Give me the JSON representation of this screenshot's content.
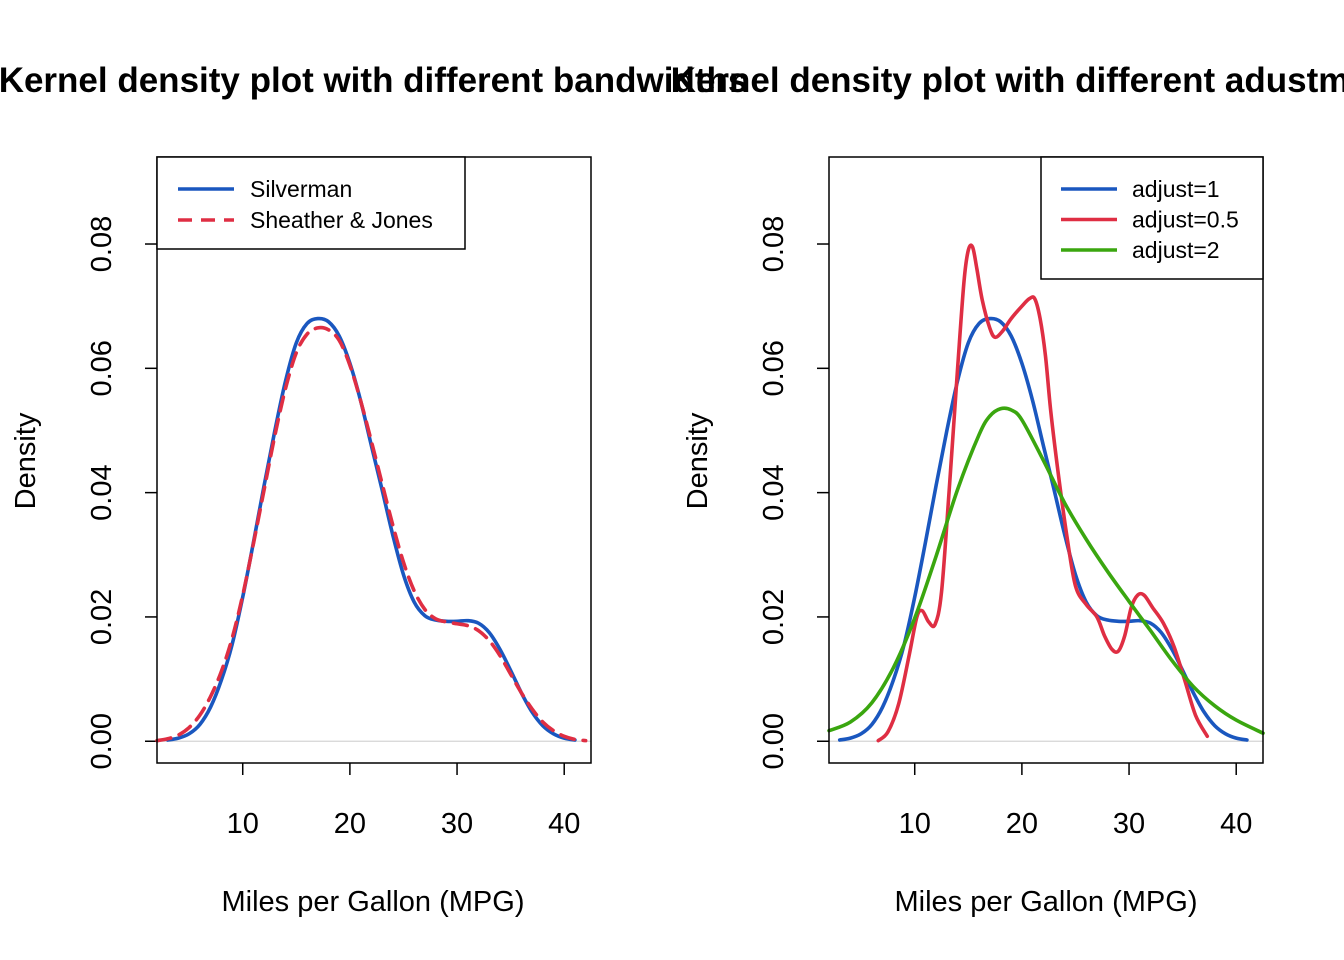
{
  "chart_data": [
    {
      "type": "line",
      "title": "Kernel density plot with different bandwidths",
      "xlabel": "Miles per Gallon (MPG)",
      "ylabel": "Density",
      "xlim": [
        2,
        42.5
      ],
      "ylim": [
        -0.0035,
        0.094
      ],
      "x_ticks": [
        10,
        20,
        30,
        40
      ],
      "x_tick_labels": [
        "10",
        "20",
        "30",
        "40"
      ],
      "y_ticks": [
        0,
        0.02,
        0.04,
        0.06,
        0.08
      ],
      "y_tick_labels": [
        "0.00",
        "0.02",
        "0.04",
        "0.06",
        "0.08"
      ],
      "grid": false,
      "baseline": 0,
      "legend": {
        "position": "top-left",
        "entries": [
          {
            "label": "Silverman",
            "color": "#1a57bf",
            "dash": "solid"
          },
          {
            "label": "Sheather & Jones",
            "color": "#df2e43",
            "dash": "dashed"
          }
        ]
      },
      "series": [
        {
          "name": "Silverman",
          "color": "#1a57bf",
          "dash": "solid",
          "x": [
            3,
            4,
            5,
            6,
            7,
            8,
            9,
            10,
            11,
            12,
            13,
            14,
            15,
            16,
            17,
            18,
            19,
            20,
            21,
            22,
            23,
            24,
            25,
            26,
            27,
            28,
            29,
            30,
            31,
            32,
            33,
            34,
            35,
            36,
            37,
            38,
            39,
            40,
            41
          ],
          "y": [
            0.0002,
            0.0005,
            0.0012,
            0.0027,
            0.0055,
            0.0098,
            0.0155,
            0.0232,
            0.032,
            0.0412,
            0.05,
            0.058,
            0.0641,
            0.0672,
            0.068,
            0.0675,
            0.0652,
            0.0608,
            0.0548,
            0.0476,
            0.0405,
            0.0332,
            0.0268,
            0.0224,
            0.0202,
            0.0195,
            0.0193,
            0.0193,
            0.0194,
            0.019,
            0.0175,
            0.0148,
            0.0114,
            0.0078,
            0.0047,
            0.0025,
            0.0012,
            0.0005,
            0.0002
          ]
        },
        {
          "name": "Sheather & Jones",
          "color": "#df2e43",
          "dash": "dashed",
          "x": [
            2,
            3,
            4,
            5,
            6,
            7,
            8,
            9,
            10,
            11,
            12,
            13,
            14,
            15,
            16,
            17,
            18,
            19,
            20,
            21,
            22,
            23,
            24,
            25,
            26,
            27,
            28,
            29,
            30,
            31,
            32,
            33,
            34,
            35,
            36,
            37,
            38,
            39,
            40,
            41,
            42
          ],
          "y": [
            0.0001,
            0.0004,
            0.001,
            0.0022,
            0.0042,
            0.0072,
            0.0112,
            0.0165,
            0.0235,
            0.0318,
            0.0405,
            0.0492,
            0.0568,
            0.0625,
            0.0655,
            0.0665,
            0.0662,
            0.0645,
            0.0605,
            0.0548,
            0.0483,
            0.0415,
            0.0348,
            0.0288,
            0.0242,
            0.0212,
            0.0197,
            0.0192,
            0.0189,
            0.0186,
            0.0178,
            0.0162,
            0.0138,
            0.0108,
            0.0078,
            0.0052,
            0.0031,
            0.0017,
            0.0008,
            0.0003,
            0.0001
          ]
        }
      ]
    },
    {
      "type": "line",
      "title": "Kernel density plot with different adustments",
      "xlabel": "Miles per Gallon (MPG)",
      "ylabel": "Density",
      "xlim": [
        2,
        42.5
      ],
      "ylim": [
        -0.0035,
        0.094
      ],
      "x_ticks": [
        10,
        20,
        30,
        40
      ],
      "x_tick_labels": [
        "10",
        "20",
        "30",
        "40"
      ],
      "y_ticks": [
        0,
        0.02,
        0.04,
        0.06,
        0.08
      ],
      "y_tick_labels": [
        "0.00",
        "0.02",
        "0.04",
        "0.06",
        "0.08"
      ],
      "grid": false,
      "baseline": 0,
      "legend": {
        "position": "top-right",
        "entries": [
          {
            "label": "adjust=1",
            "color": "#1a57bf",
            "dash": "solid"
          },
          {
            "label": "adjust=0.5",
            "color": "#df2e43",
            "dash": "solid"
          },
          {
            "label": "adjust=2",
            "color": "#3aa60f",
            "dash": "solid"
          }
        ]
      },
      "series": [
        {
          "name": "adjust=1",
          "color": "#1a57bf",
          "dash": "solid",
          "x": [
            3,
            4,
            5,
            6,
            7,
            8,
            9,
            10,
            11,
            12,
            13,
            14,
            15,
            16,
            17,
            18,
            19,
            20,
            21,
            22,
            23,
            24,
            25,
            26,
            27,
            28,
            29,
            30,
            31,
            32,
            33,
            34,
            35,
            36,
            37,
            38,
            39,
            40,
            41
          ],
          "y": [
            0.0002,
            0.0005,
            0.0012,
            0.0027,
            0.0055,
            0.0098,
            0.0155,
            0.0232,
            0.032,
            0.0412,
            0.05,
            0.058,
            0.0641,
            0.0672,
            0.068,
            0.0675,
            0.0652,
            0.0608,
            0.0548,
            0.0476,
            0.0405,
            0.0332,
            0.0268,
            0.0224,
            0.0202,
            0.0195,
            0.0193,
            0.0193,
            0.0194,
            0.019,
            0.0175,
            0.0148,
            0.0114,
            0.0078,
            0.0047,
            0.0025,
            0.0012,
            0.0005,
            0.0002
          ]
        },
        {
          "name": "adjust=0.5",
          "color": "#df2e43",
          "dash": "solid",
          "x": [
            6.6,
            7.5,
            8.5,
            9.5,
            10.2,
            10.7,
            11.3,
            11.9,
            12.5,
            13.2,
            14,
            14.6,
            15,
            15.4,
            15.8,
            16.3,
            17,
            17.5,
            18.2,
            19,
            20,
            20.7,
            21.2,
            21.7,
            22.2,
            22.7,
            23.4,
            24.2,
            25,
            26,
            27,
            27.7,
            28.4,
            29,
            29.6,
            30.2,
            30.8,
            31.4,
            32.2,
            33.2,
            34.2,
            35.2,
            36.2,
            37.3
          ],
          "y": [
            0.0001,
            0.0015,
            0.006,
            0.014,
            0.02,
            0.021,
            0.0192,
            0.0188,
            0.024,
            0.04,
            0.06,
            0.074,
            0.079,
            0.0795,
            0.076,
            0.071,
            0.0665,
            0.065,
            0.066,
            0.068,
            0.07,
            0.0712,
            0.0712,
            0.068,
            0.062,
            0.053,
            0.043,
            0.033,
            0.025,
            0.022,
            0.02,
            0.017,
            0.0148,
            0.0145,
            0.017,
            0.0215,
            0.0235,
            0.0235,
            0.0215,
            0.019,
            0.0152,
            0.0098,
            0.0042,
            0.0008
          ]
        },
        {
          "name": "adjust=2",
          "color": "#3aa60f",
          "dash": "solid",
          "x": [
            2,
            4,
            6,
            8,
            10,
            12,
            14,
            16,
            17,
            18,
            19,
            20,
            22,
            24,
            26,
            28,
            30,
            32,
            34,
            36,
            38,
            40,
            42.5
          ],
          "y": [
            0.0017,
            0.0031,
            0.0062,
            0.0118,
            0.0198,
            0.0298,
            0.0405,
            0.0493,
            0.0523,
            0.0535,
            0.0533,
            0.0517,
            0.0452,
            0.0383,
            0.0325,
            0.0273,
            0.0225,
            0.0178,
            0.013,
            0.0088,
            0.0057,
            0.0034,
            0.0013
          ]
        }
      ]
    }
  ]
}
